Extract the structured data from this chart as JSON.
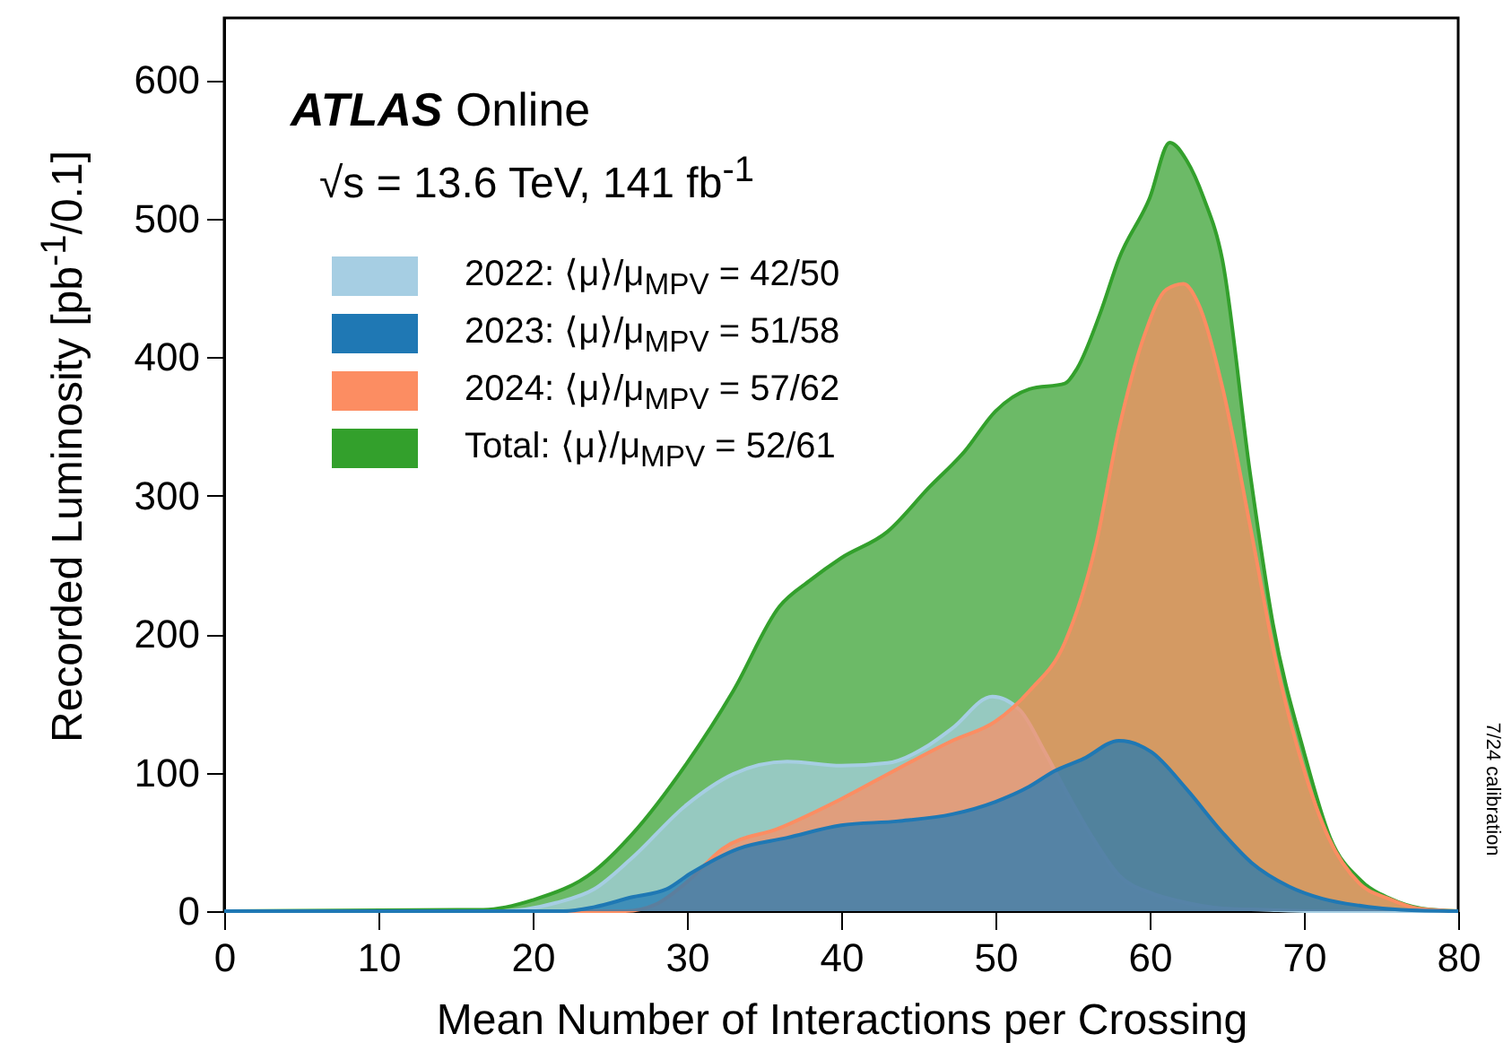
{
  "chart_data": {
    "type": "area",
    "xlabel": "Mean Number of Interactions per Crossing",
    "ylabel": "Recorded Luminosity [pb$^{-1}$/0.1]",
    "annotations": [
      "ATLAS Online",
      "√s = 13.6 TeV, 141 fb$^{-1}$",
      "7/24 calibration"
    ],
    "xlim": [
      0,
      80
    ],
    "xticks": [
      0,
      10,
      20,
      30,
      40,
      50,
      60,
      70,
      80
    ],
    "ylim": [
      0,
      645
    ],
    "yticks": [
      0,
      100,
      200,
      300,
      400,
      500,
      600
    ],
    "legend": "top left",
    "series": [
      {
        "name": "Total: ⟨μ⟩/μ$_{MPV}$ = 52/61",
        "color": "#33a02c",
        "x": [
          0,
          16.8,
          20,
          24,
          26.4,
          30,
          33,
          36,
          38,
          40,
          43,
          45.7,
          48,
          50,
          52.2,
          54.5,
          55.3,
          56.8,
          58,
          60,
          61.3,
          62.4,
          63.5,
          64.7,
          66.5,
          68,
          70,
          71.7,
          73.7,
          75.6,
          77.6,
          80
        ],
        "values": [
          0,
          1,
          8,
          29,
          55,
          107,
          159,
          220,
          239,
          255,
          274,
          306,
          332,
          361,
          377,
          381,
          392,
          432,
          471,
          515,
          555,
          542,
          515,
          471,
          317,
          207,
          115,
          53,
          22,
          9,
          2,
          0
        ]
      },
      {
        "name": "2022: ⟨μ⟩/μ$_{MPV}$ = 42/50",
        "color": "#a6cee3",
        "x": [
          0,
          18,
          21.5,
          24,
          26.4,
          30,
          33,
          36.5,
          40,
          43,
          45.7,
          47.2,
          49.8,
          51.6,
          53.2,
          54.7,
          56.3,
          58,
          60.1,
          62,
          64.7,
          67.4,
          70.5,
          80
        ],
        "values": [
          0,
          0,
          6,
          16,
          38,
          77,
          99,
          108,
          105,
          107,
          120,
          132,
          155,
          145,
          115,
          84,
          53,
          26,
          13,
          7,
          2,
          1,
          0,
          0
        ]
      },
      {
        "name": "2024: ⟨μ⟩/μ$_{MPV}$ = 57/62",
        "color": "#fc8d62",
        "x": [
          0,
          26,
          28,
          30,
          32.3,
          36,
          40,
          43.7,
          47.2,
          50,
          52.2,
          54.5,
          56.5,
          58,
          59.6,
          61.1,
          62.2,
          63.1,
          64.7,
          66.6,
          68.1,
          69.9,
          71.6,
          73.6,
          75.5,
          77.4,
          80
        ],
        "values": [
          0,
          0,
          5,
          21,
          45,
          60,
          81,
          103,
          123,
          137,
          159,
          194,
          264,
          348,
          414,
          449,
          453,
          440,
          379,
          273,
          185,
          106,
          53,
          20,
          9,
          2,
          0
        ]
      },
      {
        "name": "2023: ⟨μ⟩/μ$_{MPV}$ = 51/58",
        "color": "#1f78b4",
        "x": [
          0,
          22,
          24,
          26.4,
          28.7,
          30.2,
          33.3,
          36.5,
          40,
          43.7,
          47.2,
          50,
          52.2,
          53.8,
          55.7,
          58,
          60.1,
          62.4,
          64.7,
          66.6,
          69,
          71.2,
          73.6,
          76.3,
          80
        ],
        "values": [
          0,
          0,
          3,
          10,
          16,
          27,
          45,
          53,
          62,
          65,
          70,
          79,
          90,
          101,
          110,
          123,
          115,
          88,
          57,
          35,
          18,
          9,
          4,
          1,
          0
        ]
      }
    ]
  }
}
